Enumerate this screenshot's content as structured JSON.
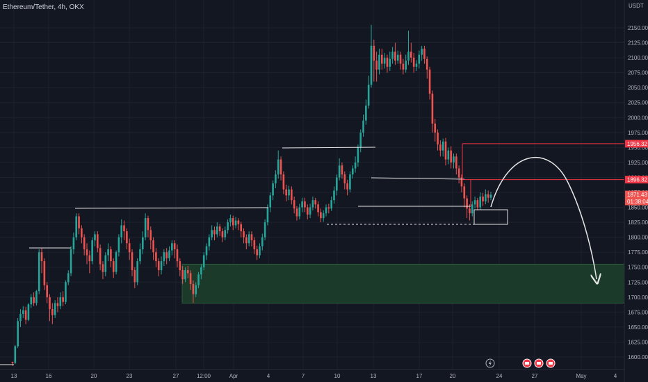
{
  "header": {
    "symbol_title": "Ethereum/Tether, 4h, OKX"
  },
  "colors": {
    "background": "#131722",
    "grid": "#1e222d",
    "up": "#26a69a",
    "down": "#ef5350",
    "resistance": "#f23645",
    "zone": "#1b3a2a",
    "zone_border": "#2e5b3d",
    "white": "#e6e6e6"
  },
  "icons": [
    "flash-icon",
    "earnings-icon",
    "earnings-icon",
    "earnings-icon"
  ],
  "chart_data": {
    "type": "candlestick",
    "title": "Ethereum/Tether, 4h, OKX",
    "currency_label": "USDT",
    "ylim": [
      1580,
      2170
    ],
    "y_ticks": [
      1600,
      1625,
      1650,
      1675,
      1700,
      1725,
      1750,
      1775,
      1800,
      1825,
      1850,
      1875,
      1900,
      1925,
      1950,
      1975,
      2000,
      2025,
      2050,
      2075,
      2100,
      2125,
      2150
    ],
    "y_tick_labels": [
      "1600.00",
      "1625.00",
      "1650.00",
      "1675.00",
      "1700.00",
      "1725.00",
      "1750.00",
      "1775.00",
      "1800.00",
      "1825.00",
      "1850.00",
      "1875.00",
      "1900.00",
      "1925.00",
      "1950.00",
      "1975.00",
      "2000.00",
      "2025.00",
      "2050.00",
      "2075.00",
      "2100.00",
      "2125.00",
      "2150.00"
    ],
    "x_ticks": [
      "13",
      "16",
      "20",
      "23",
      "27",
      "12:00",
      "Apr",
      "4",
      "7",
      "10",
      "13",
      "17",
      "20",
      "24",
      "27",
      "May",
      "4"
    ],
    "price_tags": [
      {
        "label": "1956.32",
        "value": 1956.32,
        "kind": "resistance"
      },
      {
        "label": "1896.32",
        "value": 1896.32,
        "kind": "resistance"
      },
      {
        "label": "1871.43",
        "value": 1871.43,
        "kind": "current"
      },
      {
        "label": "01:38:04",
        "value": 1860,
        "kind": "countdown"
      }
    ],
    "demand_zone": [
      1690,
      1755
    ],
    "key_levels": [
      1956.32,
      1896.32,
      1845
    ],
    "candles": [
      [
        1592,
        1590,
        1592,
        1585
      ],
      [
        1590,
        1618,
        1620,
        1588
      ],
      [
        1618,
        1660,
        1665,
        1615
      ],
      [
        1660,
        1672,
        1680,
        1650
      ],
      [
        1672,
        1678,
        1685,
        1665
      ],
      [
        1678,
        1662,
        1684,
        1655
      ],
      [
        1662,
        1688,
        1690,
        1660
      ],
      [
        1688,
        1700,
        1705,
        1682
      ],
      [
        1700,
        1690,
        1708,
        1685
      ],
      [
        1690,
        1710,
        1712,
        1686
      ],
      [
        1710,
        1775,
        1780,
        1705
      ],
      [
        1775,
        1760,
        1782,
        1740
      ],
      [
        1760,
        1720,
        1765,
        1712
      ],
      [
        1720,
        1700,
        1725,
        1690
      ],
      [
        1700,
        1680,
        1705,
        1660
      ],
      [
        1680,
        1670,
        1690,
        1655
      ],
      [
        1670,
        1690,
        1695,
        1665
      ],
      [
        1690,
        1685,
        1700,
        1675
      ],
      [
        1685,
        1700,
        1708,
        1680
      ],
      [
        1700,
        1692,
        1710,
        1685
      ],
      [
        1692,
        1725,
        1728,
        1688
      ],
      [
        1725,
        1740,
        1745,
        1720
      ],
      [
        1740,
        1780,
        1785,
        1735
      ],
      [
        1780,
        1800,
        1808,
        1772
      ],
      [
        1800,
        1835,
        1840,
        1795
      ],
      [
        1835,
        1815,
        1840,
        1805
      ],
      [
        1815,
        1800,
        1820,
        1790
      ],
      [
        1800,
        1780,
        1805,
        1770
      ],
      [
        1780,
        1770,
        1790,
        1755
      ],
      [
        1770,
        1760,
        1778,
        1740
      ],
      [
        1760,
        1795,
        1800,
        1755
      ],
      [
        1795,
        1805,
        1810,
        1785
      ],
      [
        1805,
        1782,
        1810,
        1775
      ],
      [
        1782,
        1755,
        1788,
        1745
      ],
      [
        1755,
        1742,
        1760,
        1730
      ],
      [
        1742,
        1770,
        1775,
        1735
      ],
      [
        1770,
        1780,
        1790,
        1760
      ],
      [
        1780,
        1760,
        1785,
        1750
      ],
      [
        1760,
        1742,
        1765,
        1732
      ],
      [
        1742,
        1775,
        1778,
        1738
      ],
      [
        1775,
        1800,
        1805,
        1768
      ],
      [
        1800,
        1820,
        1830,
        1790
      ],
      [
        1820,
        1810,
        1828,
        1795
      ],
      [
        1810,
        1790,
        1815,
        1780
      ],
      [
        1790,
        1775,
        1798,
        1762
      ],
      [
        1775,
        1745,
        1780,
        1735
      ],
      [
        1745,
        1725,
        1750,
        1715
      ],
      [
        1725,
        1760,
        1765,
        1720
      ],
      [
        1760,
        1780,
        1790,
        1755
      ],
      [
        1780,
        1800,
        1810,
        1772
      ],
      [
        1800,
        1832,
        1840,
        1795
      ],
      [
        1832,
        1812,
        1836,
        1800
      ],
      [
        1812,
        1795,
        1818,
        1780
      ],
      [
        1795,
        1775,
        1800,
        1762
      ],
      [
        1775,
        1760,
        1782,
        1750
      ],
      [
        1760,
        1745,
        1765,
        1735
      ],
      [
        1745,
        1760,
        1768,
        1738
      ],
      [
        1760,
        1775,
        1780,
        1752
      ],
      [
        1775,
        1765,
        1782,
        1755
      ],
      [
        1765,
        1778,
        1785,
        1760
      ],
      [
        1778,
        1790,
        1795,
        1770
      ],
      [
        1790,
        1780,
        1795,
        1765
      ],
      [
        1780,
        1760,
        1788,
        1750
      ],
      [
        1760,
        1745,
        1765,
        1735
      ],
      [
        1745,
        1730,
        1752,
        1722
      ],
      [
        1730,
        1745,
        1750,
        1725
      ],
      [
        1745,
        1740,
        1752,
        1732
      ],
      [
        1740,
        1722,
        1745,
        1712
      ],
      [
        1722,
        1705,
        1728,
        1690
      ],
      [
        1705,
        1720,
        1725,
        1700
      ],
      [
        1720,
        1738,
        1742,
        1715
      ],
      [
        1738,
        1750,
        1755,
        1730
      ],
      [
        1750,
        1770,
        1775,
        1745
      ],
      [
        1770,
        1785,
        1790,
        1762
      ],
      [
        1785,
        1800,
        1805,
        1778
      ],
      [
        1800,
        1812,
        1820,
        1795
      ],
      [
        1812,
        1805,
        1818,
        1795
      ],
      [
        1805,
        1818,
        1825,
        1800
      ],
      [
        1818,
        1810,
        1822,
        1802
      ],
      [
        1810,
        1800,
        1815,
        1792
      ],
      [
        1800,
        1812,
        1818,
        1795
      ],
      [
        1812,
        1825,
        1830,
        1806
      ],
      [
        1825,
        1832,
        1838,
        1818
      ],
      [
        1832,
        1820,
        1836,
        1812
      ],
      [
        1820,
        1828,
        1834,
        1815
      ],
      [
        1828,
        1822,
        1832,
        1812
      ],
      [
        1822,
        1810,
        1826,
        1800
      ],
      [
        1810,
        1800,
        1815,
        1790
      ],
      [
        1800,
        1790,
        1805,
        1780
      ],
      [
        1790,
        1805,
        1810,
        1785
      ],
      [
        1805,
        1795,
        1810,
        1785
      ],
      [
        1795,
        1780,
        1800,
        1772
      ],
      [
        1780,
        1770,
        1786,
        1762
      ],
      [
        1770,
        1785,
        1790,
        1765
      ],
      [
        1785,
        1800,
        1806,
        1778
      ],
      [
        1800,
        1825,
        1830,
        1795
      ],
      [
        1825,
        1850,
        1855,
        1820
      ],
      [
        1850,
        1870,
        1875,
        1842
      ],
      [
        1870,
        1890,
        1895,
        1862
      ],
      [
        1890,
        1905,
        1912,
        1882
      ],
      [
        1905,
        1930,
        1945,
        1898
      ],
      [
        1930,
        1905,
        1935,
        1895
      ],
      [
        1905,
        1880,
        1910,
        1872
      ],
      [
        1880,
        1870,
        1888,
        1860
      ],
      [
        1870,
        1880,
        1886,
        1862
      ],
      [
        1880,
        1862,
        1885,
        1855
      ],
      [
        1862,
        1848,
        1868,
        1840
      ],
      [
        1848,
        1835,
        1852,
        1828
      ],
      [
        1835,
        1850,
        1856,
        1830
      ],
      [
        1850,
        1860,
        1866,
        1842
      ],
      [
        1860,
        1850,
        1866,
        1842
      ],
      [
        1850,
        1838,
        1855,
        1830
      ],
      [
        1838,
        1850,
        1856,
        1832
      ],
      [
        1850,
        1862,
        1868,
        1845
      ],
      [
        1862,
        1855,
        1866,
        1848
      ],
      [
        1855,
        1842,
        1860,
        1835
      ],
      [
        1842,
        1832,
        1848,
        1825
      ],
      [
        1832,
        1840,
        1845,
        1826
      ],
      [
        1840,
        1850,
        1855,
        1835
      ],
      [
        1850,
        1848,
        1856,
        1840
      ],
      [
        1848,
        1862,
        1868,
        1844
      ],
      [
        1862,
        1878,
        1885,
        1856
      ],
      [
        1878,
        1900,
        1905,
        1870
      ],
      [
        1900,
        1920,
        1932,
        1895
      ],
      [
        1920,
        1905,
        1925,
        1898
      ],
      [
        1905,
        1890,
        1910,
        1880
      ],
      [
        1890,
        1880,
        1896,
        1870
      ],
      [
        1880,
        1905,
        1910,
        1875
      ],
      [
        1905,
        1915,
        1920,
        1898
      ],
      [
        1915,
        1925,
        1935,
        1908
      ],
      [
        1925,
        1950,
        1955,
        1918
      ],
      [
        1950,
        1975,
        1980,
        1942
      ],
      [
        1975,
        1995,
        2005,
        1968
      ],
      [
        1995,
        2020,
        2030,
        1988
      ],
      [
        2020,
        2055,
        2070,
        2015
      ],
      [
        2055,
        2120,
        2155,
        2050
      ],
      [
        2120,
        2095,
        2130,
        2060
      ],
      [
        2095,
        2080,
        2110,
        2060
      ],
      [
        2080,
        2105,
        2115,
        2072
      ],
      [
        2105,
        2090,
        2115,
        2080
      ],
      [
        2090,
        2100,
        2108,
        2082
      ],
      [
        2100,
        2085,
        2105,
        2075
      ],
      [
        2085,
        2098,
        2110,
        2078
      ],
      [
        2098,
        2110,
        2118,
        2090
      ],
      [
        2110,
        2095,
        2125,
        2088
      ],
      [
        2095,
        2105,
        2112,
        2090
      ],
      [
        2105,
        2090,
        2110,
        2080
      ],
      [
        2090,
        2080,
        2098,
        2072
      ],
      [
        2080,
        2095,
        2105,
        2075
      ],
      [
        2095,
        2110,
        2145,
        2088
      ],
      [
        2110,
        2100,
        2125,
        2092
      ],
      [
        2100,
        2085,
        2108,
        2075
      ],
      [
        2085,
        2090,
        2096,
        2078
      ],
      [
        2090,
        2105,
        2112,
        2082
      ],
      [
        2105,
        2115,
        2120,
        2095
      ],
      [
        2115,
        2098,
        2120,
        2090
      ],
      [
        2098,
        2080,
        2102,
        2065
      ],
      [
        2080,
        2040,
        2085,
        2030
      ],
      [
        2040,
        1990,
        2045,
        1975
      ],
      [
        1990,
        1975,
        1998,
        1960
      ],
      [
        1975,
        1955,
        1980,
        1945
      ],
      [
        1955,
        1945,
        1962,
        1935
      ],
      [
        1945,
        1960,
        1965,
        1935
      ],
      [
        1960,
        1930,
        1966,
        1920
      ],
      [
        1930,
        1945,
        1950,
        1922
      ],
      [
        1945,
        1925,
        1952,
        1915
      ],
      [
        1925,
        1935,
        1940,
        1915
      ],
      [
        1935,
        1915,
        1940,
        1905
      ],
      [
        1915,
        1900,
        1920,
        1890
      ],
      [
        1900,
        1885,
        1905,
        1875
      ],
      [
        1885,
        1865,
        1890,
        1850
      ],
      [
        1865,
        1848,
        1870,
        1832
      ],
      [
        1848,
        1840,
        1855,
        1828
      ],
      [
        1840,
        1855,
        1860,
        1835
      ],
      [
        1855,
        1862,
        1868,
        1848
      ],
      [
        1862,
        1850,
        1866,
        1845
      ],
      [
        1850,
        1868,
        1875,
        1846
      ],
      [
        1868,
        1860,
        1874,
        1852
      ],
      [
        1860,
        1872,
        1880,
        1855
      ],
      [
        1872,
        1866,
        1878,
        1858
      ],
      [
        1866,
        1871,
        1876,
        1862
      ]
    ]
  }
}
